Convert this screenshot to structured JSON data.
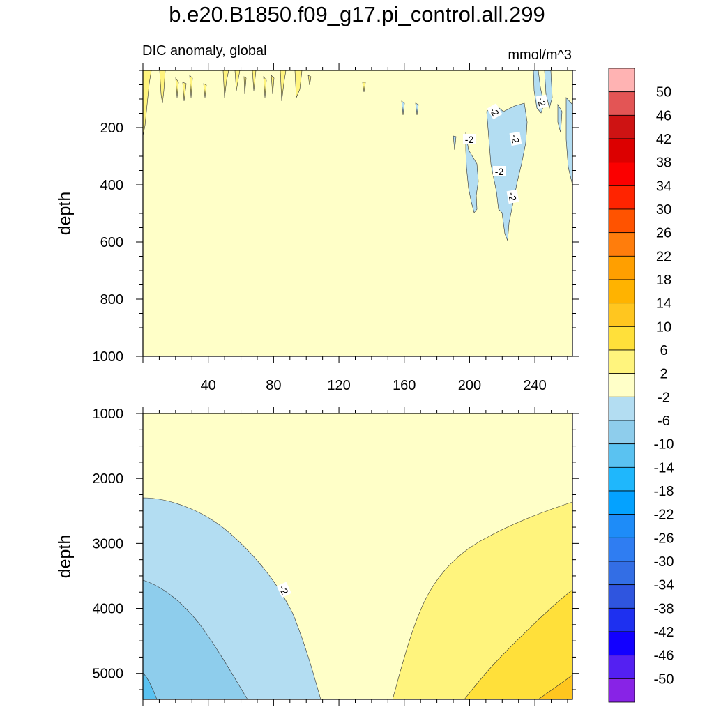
{
  "title": "b.e20.B1850.f09_g17.pi_control.all.299",
  "subtitle_left": "DIC anomaly, global",
  "subtitle_right": "mmol/m^3",
  "chart_data": [
    {
      "type": "contour",
      "panel": "upper",
      "ylabel": "depth",
      "xlabel": "",
      "xlim": [
        0,
        263
      ],
      "ylim": [
        0,
        1000
      ],
      "y_inverted": true,
      "x_ticks": [
        40,
        80,
        120,
        160,
        200,
        240
      ],
      "y_ticks": [
        200,
        400,
        600,
        800,
        1000
      ],
      "background_level": "-2 to 2",
      "regions": [
        {
          "name": "positive-streaks-near-surface",
          "level": "2 to 6",
          "x_range": [
            0,
            100
          ],
          "depth_range": [
            0,
            200
          ]
        },
        {
          "name": "negative-patches-east",
          "level": "-6 to -2",
          "x_range": [
            150,
            263
          ],
          "depth_range": [
            0,
            580
          ]
        }
      ],
      "contour_labels": [
        "-2",
        "-2",
        "-2",
        "-2",
        "-2",
        "-2"
      ]
    },
    {
      "type": "contour",
      "panel": "lower",
      "ylabel": "depth",
      "xlabel": "",
      "xlim": [
        0,
        263
      ],
      "ylim": [
        1000,
        5400
      ],
      "y_inverted": true,
      "y_ticks": [
        1000,
        2000,
        3000,
        4000,
        5000
      ],
      "background_level": "-2 to 2",
      "regions": [
        {
          "name": "west-negative",
          "level": "-6 to -2",
          "x_range": [
            0,
            110
          ],
          "depth_range": [
            2300,
            5400
          ]
        },
        {
          "name": "west-deep-negative",
          "level": "-10 to -6",
          "x_range": [
            0,
            65
          ],
          "depth_range": [
            3550,
            5400
          ]
        },
        {
          "name": "west-corner",
          "level": "-14 to -10",
          "x_range": [
            0,
            8
          ],
          "depth_range": [
            5000,
            5400
          ]
        },
        {
          "name": "east-positive",
          "level": "2 to 6",
          "x_range": [
            155,
            263
          ],
          "depth_range": [
            2350,
            5400
          ]
        },
        {
          "name": "east-deep-positive",
          "level": "6 to 10",
          "x_range": [
            195,
            263
          ],
          "depth_range": [
            3700,
            5400
          ]
        },
        {
          "name": "east-corner",
          "level": "10 to 14",
          "x_range": [
            245,
            263
          ],
          "depth_range": [
            5000,
            5400
          ]
        }
      ],
      "contour_labels": [
        "-2"
      ]
    }
  ],
  "colorbar": {
    "labels": [
      "50",
      "46",
      "42",
      "38",
      "34",
      "30",
      "26",
      "22",
      "18",
      "14",
      "10",
      "6",
      "2",
      "-2",
      "-6",
      "-10",
      "-14",
      "-18",
      "-22",
      "-26",
      "-30",
      "-34",
      "-38",
      "-42",
      "-46",
      "-50"
    ],
    "colors": [
      "#FFB3B3",
      "#E35555",
      "#CE1313",
      "#DC0000",
      "#FB0000",
      "#FF2400",
      "#FF5300",
      "#FF7D0C",
      "#FF9F00",
      "#FFB300",
      "#FFC61F",
      "#FFE03A",
      "#FFF47D",
      "#FFFFC8",
      "#B3DDF2",
      "#8ECDEC",
      "#5AC2F1",
      "#1FB7FC",
      "#04A2FF",
      "#1E8CF8",
      "#2F7DF2",
      "#336EE5",
      "#2F55DF",
      "#1E30F0",
      "#1200FF",
      "#5420F2",
      "#8823E6"
    ]
  }
}
